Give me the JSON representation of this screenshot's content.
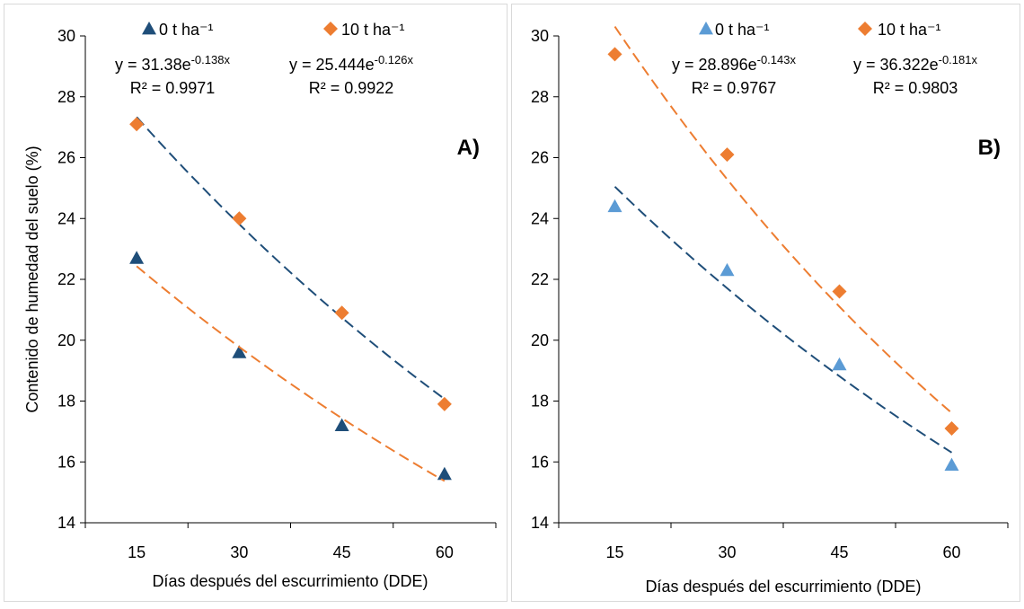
{
  "chart_data": [
    {
      "type": "scatter",
      "panel_label": "A)",
      "x": [
        15,
        30,
        45,
        60
      ],
      "xlabel": "Días después del escurrimiento (DDE)",
      "ylabel": "Contenido de humedad del suelo (%)",
      "ylim": [
        14,
        30
      ],
      "yticks": [
        14,
        16,
        18,
        20,
        22,
        24,
        26,
        28,
        30
      ],
      "grid": false,
      "legend_position": "top",
      "series": [
        {
          "name": "0 t ha⁻¹",
          "marker": "triangle",
          "color": "#1f4e79",
          "values": [
            22.7,
            19.6,
            17.2,
            15.6
          ],
          "trendline": {
            "type": "exponential",
            "a": 31.38,
            "b": -0.138,
            "equation_base": "y = 31.38e",
            "equation_exp": "-0.138x",
            "r2_label": "R² = 0.9971"
          }
        },
        {
          "name": "10 t ha⁻¹",
          "marker": "diamond",
          "color": "#ed7d31",
          "values": [
            27.1,
            24.0,
            20.9,
            17.9
          ],
          "trendline": {
            "type": "exponential",
            "a": 25.444,
            "b": -0.126,
            "equation_base": "y = 25.444e",
            "equation_exp": "-0.126x",
            "r2_label": "R² = 0.9922"
          }
        }
      ]
    },
    {
      "type": "scatter",
      "panel_label": "B)",
      "x": [
        15,
        30,
        45,
        60
      ],
      "xlabel": "Días después del escurrimiento (DDE)",
      "ylabel": "",
      "ylim": [
        14,
        30
      ],
      "yticks": [
        14,
        16,
        18,
        20,
        22,
        24,
        26,
        28,
        30
      ],
      "grid": false,
      "legend_position": "top",
      "series": [
        {
          "name": "0 t ha⁻¹",
          "marker": "triangle",
          "color": "#5b9bd5",
          "trend_color": "#1f4e79",
          "values": [
            24.4,
            22.3,
            19.2,
            15.9
          ],
          "trendline": {
            "type": "exponential",
            "a": 28.896,
            "b": -0.143,
            "equation_base": "y = 28.896e",
            "equation_exp": "-0.143x",
            "r2_label": "R² = 0.9767"
          }
        },
        {
          "name": "10 t ha⁻¹",
          "marker": "diamond",
          "color": "#ed7d31",
          "values": [
            29.4,
            26.1,
            21.6,
            17.1
          ],
          "trendline": {
            "type": "exponential",
            "a": 36.322,
            "b": -0.181,
            "equation_base": "y = 36.322e",
            "equation_exp": "-0.181x",
            "r2_label": "R² = 0.9803"
          }
        }
      ]
    }
  ]
}
